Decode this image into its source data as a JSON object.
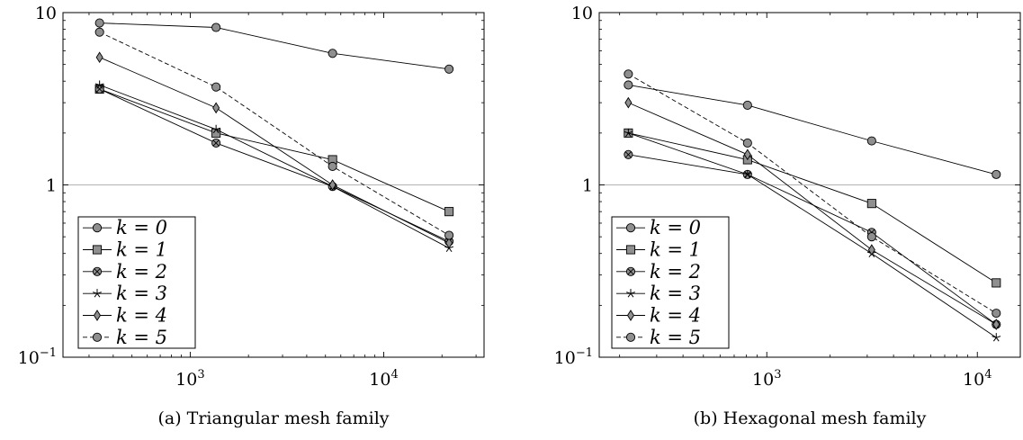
{
  "chart_data": [
    {
      "type": "line",
      "caption": "(a) Triangular mesh family",
      "xscale": "log",
      "yscale": "log",
      "xlim": [
        220,
        33000
      ],
      "ylim": [
        0.1,
        10
      ],
      "yticks": [
        {
          "value": 0.1,
          "base": "10",
          "exp": "−1"
        },
        {
          "value": 1,
          "base": "1",
          "exp": ""
        },
        {
          "value": 10,
          "base": "10",
          "exp": ""
        }
      ],
      "xticks": [
        {
          "value": 1000,
          "base": "10",
          "exp": "3"
        },
        {
          "value": 10000,
          "base": "10",
          "exp": "4"
        }
      ],
      "hline": 1,
      "legend_position": "bottom-left",
      "x": [
        340,
        1360,
        5440,
        21760
      ],
      "series": [
        {
          "name": "k = 0",
          "marker": "circle",
          "dashed": false,
          "values": [
            8.7,
            8.2,
            5.8,
            4.7
          ]
        },
        {
          "name": "k = 1",
          "marker": "square",
          "dashed": false,
          "values": [
            3.6,
            2.0,
            1.4,
            0.7
          ]
        },
        {
          "name": "k = 2",
          "marker": "otimes",
          "dashed": false,
          "values": [
            3.6,
            1.75,
            0.98,
            0.47
          ]
        },
        {
          "name": "k = 3",
          "marker": "star",
          "dashed": false,
          "values": [
            3.8,
            2.1,
            0.98,
            0.43
          ]
        },
        {
          "name": "k = 4",
          "marker": "diamond",
          "dashed": false,
          "values": [
            5.5,
            2.8,
            1.0,
            0.46
          ]
        },
        {
          "name": "k = 5",
          "marker": "circle",
          "dashed": true,
          "values": [
            7.7,
            3.7,
            1.28,
            0.51
          ]
        }
      ]
    },
    {
      "type": "line",
      "caption": "(b) Hexagonal mesh family",
      "xscale": "log",
      "yscale": "log",
      "xlim": [
        160,
        16000
      ],
      "ylim": [
        0.1,
        10
      ],
      "yticks": [
        {
          "value": 0.1,
          "base": "10",
          "exp": "−1"
        },
        {
          "value": 1,
          "base": "1",
          "exp": ""
        },
        {
          "value": 10,
          "base": "10",
          "exp": ""
        }
      ],
      "xticks": [
        {
          "value": 1000,
          "base": "10",
          "exp": "3"
        },
        {
          "value": 10000,
          "base": "10",
          "exp": "4"
        }
      ],
      "hline": 1,
      "legend_position": "bottom-left",
      "x": [
        220,
        810,
        3150,
        12300
      ],
      "series": [
        {
          "name": "k = 0",
          "marker": "circle",
          "dashed": false,
          "values": [
            3.8,
            2.9,
            1.8,
            1.15
          ]
        },
        {
          "name": "k = 1",
          "marker": "square",
          "dashed": false,
          "values": [
            2.0,
            1.4,
            0.78,
            0.27
          ]
        },
        {
          "name": "k = 2",
          "marker": "otimes",
          "dashed": false,
          "values": [
            1.5,
            1.15,
            0.53,
            0.155
          ]
        },
        {
          "name": "k = 3",
          "marker": "star",
          "dashed": false,
          "values": [
            2.0,
            1.15,
            0.4,
            0.13
          ]
        },
        {
          "name": "k = 4",
          "marker": "diamond",
          "dashed": false,
          "values": [
            3.0,
            1.5,
            0.42,
            0.155
          ]
        },
        {
          "name": "k = 5",
          "marker": "circle",
          "dashed": true,
          "values": [
            4.4,
            1.75,
            0.5,
            0.18
          ]
        }
      ]
    }
  ]
}
